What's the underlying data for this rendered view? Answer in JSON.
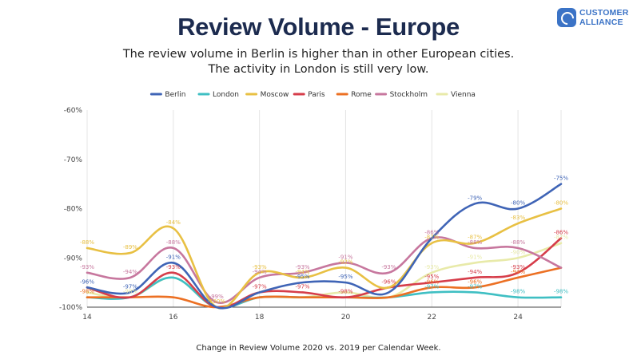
{
  "header": {
    "title": "Review Volume - Europe",
    "subtitle_line1": "The review volume in Berlin is higher than in other European cities.",
    "subtitle_line2": "The activity in London is still very low."
  },
  "logo": {
    "line1": "CUSTOMER",
    "line2": "ALLIANCE",
    "icon": "customer-alliance-logo-icon",
    "color": "#3b73c6"
  },
  "caption": "Change in Review Volume 2020 vs. 2019 per Calendar Week.",
  "chart_data": {
    "type": "line",
    "title": "Review Volume - Europe",
    "xlabel": "Change in Review Volume 2020 vs. 2019 per Calendar Week.",
    "ylabel": "",
    "x": [
      14,
      15,
      16,
      17,
      18,
      19,
      20,
      21,
      22,
      23,
      24,
      25
    ],
    "xlim": [
      14,
      25
    ],
    "xticks": [
      "14",
      "16",
      "18",
      "20",
      "22",
      "24"
    ],
    "xtick_values": [
      14,
      16,
      18,
      20,
      22,
      24
    ],
    "ylim": [
      -100,
      -60
    ],
    "yticks": [
      "-60%",
      "-70%",
      "-80%",
      "-90%",
      "-100%"
    ],
    "ytick_values": [
      -60,
      -70,
      -80,
      -90,
      -100
    ],
    "grid": "vertical",
    "legend_position": "top",
    "series": [
      {
        "name": "Berlin",
        "color": "#3f64b6",
        "values": [
          -96,
          -97,
          -91,
          -100,
          -97,
          -95,
          -95,
          -97,
          -86,
          -79,
          -80,
          -75
        ],
        "labels": [
          "-96%",
          "-97%",
          "-91%",
          "",
          "",
          "-95%",
          "-95%",
          "",
          "",
          "-79%",
          "-80%",
          "-75%"
        ]
      },
      {
        "name": "London",
        "color": "#3fbfc3",
        "values": [
          -98,
          -98,
          -94,
          -100,
          -98,
          -98,
          -98,
          -98,
          -97,
          -97,
          -98,
          -98
        ],
        "labels": [
          "",
          "",
          "",
          "",
          "",
          "",
          "",
          "",
          "-97%",
          "-97%",
          "-98%",
          "-98%"
        ]
      },
      {
        "name": "Moscow",
        "color": "#e8c043",
        "values": [
          -88,
          -89,
          -84,
          -100,
          -93,
          -94,
          -92,
          -96,
          -87,
          -87,
          -83,
          -80
        ],
        "labels": [
          "-88%",
          "-89%",
          "-84%",
          "-100%",
          "-93%",
          "-94%",
          "-92%",
          "",
          "-87%",
          "-87%",
          "-83%",
          "-80%"
        ]
      },
      {
        "name": "Paris",
        "color": "#d63d4a",
        "values": [
          -96,
          -98,
          -93,
          -100,
          -97,
          -97,
          -98,
          -96,
          -95,
          -94,
          -93,
          -86
        ],
        "labels": [
          "",
          "",
          "-93%",
          "",
          "-97%",
          "-97%",
          "-98%",
          "-96%",
          "-95%",
          "-94%",
          "-93%",
          "-86%"
        ]
      },
      {
        "name": "Rome",
        "color": "#ec7023",
        "values": [
          -98,
          -98,
          -98,
          -100,
          -98,
          -98,
          -98,
          -98,
          -96,
          -96,
          -94,
          -92
        ],
        "labels": [
          "-98%",
          "",
          "",
          "",
          "",
          "",
          "",
          "",
          "-96%",
          "-96%",
          "-94%",
          ""
        ]
      },
      {
        "name": "Stockholm",
        "color": "#c7779e",
        "values": [
          -93,
          -94,
          -88,
          -99,
          -94,
          -93,
          -91,
          -93,
          -86,
          -88,
          -88,
          -92
        ],
        "labels": [
          "-93%",
          "-94%",
          "-88%",
          "-99%",
          "-94%",
          "-93%",
          "-91%",
          "-93%",
          "-86%",
          "-88%",
          "-88%",
          ""
        ]
      },
      {
        "name": "Vienna",
        "color": "#e8eaa9",
        "values": [
          -97,
          -98,
          -94,
          -100,
          -98,
          -98,
          -97,
          -98,
          -93,
          -91,
          -90,
          -87
        ],
        "labels": [
          "",
          "-98%",
          "",
          "",
          "",
          "",
          "",
          "",
          "-93%",
          "-91%",
          "-90%",
          "-87%"
        ]
      }
    ]
  }
}
